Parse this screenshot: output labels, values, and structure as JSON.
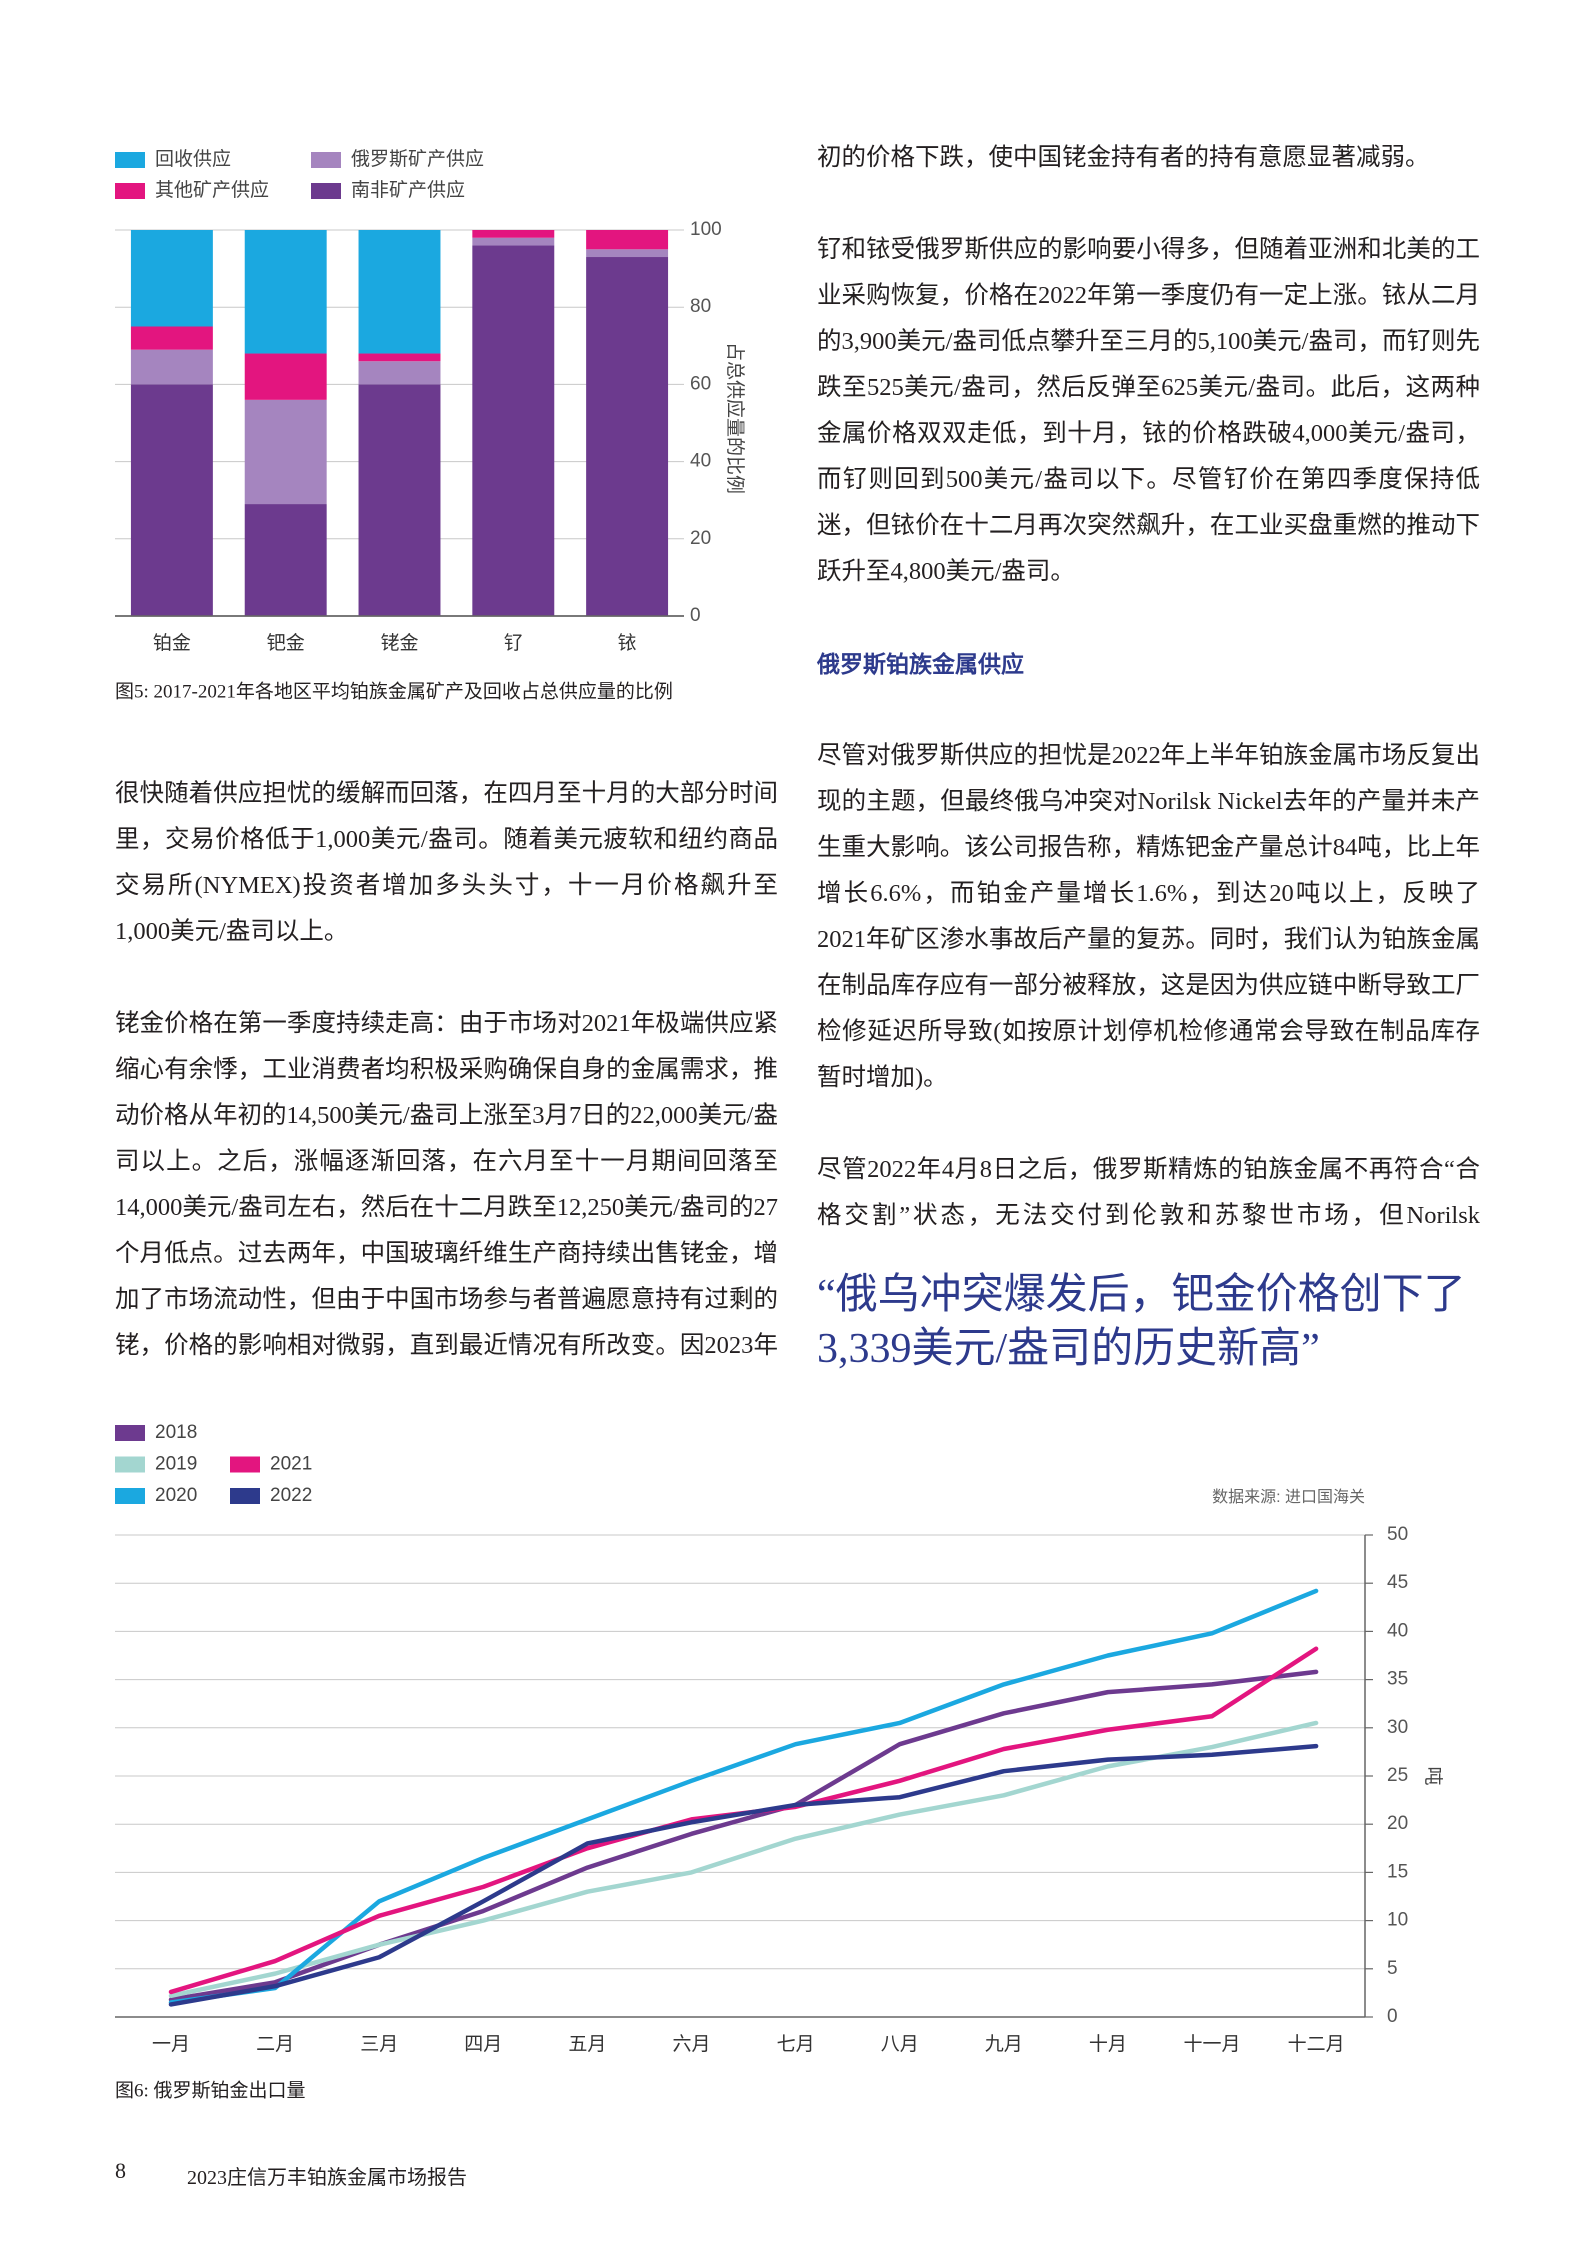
{
  "chart_data": [
    {
      "type": "stacked-bar",
      "categories": [
        "铂金",
        "钯金",
        "铑金",
        "钌",
        "铱"
      ],
      "series": [
        {
          "name": "南非矿产供应",
          "color": "#6c3a8e",
          "values": [
            60,
            29,
            60,
            96,
            93
          ]
        },
        {
          "name": "俄罗斯矿产供应",
          "color": "#a585bf",
          "values": [
            9,
            27,
            6,
            2,
            2
          ]
        },
        {
          "name": "其他矿产供应",
          "color": "#e3157f",
          "values": [
            6,
            12,
            2,
            2,
            5
          ]
        },
        {
          "name": "回收供应",
          "color": "#1ba8e0",
          "values": [
            25,
            32,
            32,
            0,
            0
          ]
        }
      ],
      "ylim": [
        0,
        100
      ],
      "yticks": [
        0,
        20,
        40,
        60,
        80,
        100
      ],
      "y_label": "占总供应量的比例",
      "grid": true,
      "caption": "图5: 2017-2021年各地区平均铂族金属矿产及回收占总供应量的比例"
    },
    {
      "type": "line",
      "categories": [
        "一月",
        "二月",
        "三月",
        "四月",
        "五月",
        "六月",
        "七月",
        "八月",
        "九月",
        "十月",
        "十一月",
        "十二月"
      ],
      "series": [
        {
          "name": "2018",
          "color": "#6d3a8f",
          "values": [
            1.8,
            3.6,
            7.5,
            11,
            15.5,
            19,
            22,
            28.3,
            31.5,
            33.7,
            34.5,
            35.8
          ]
        },
        {
          "name": "2019",
          "color": "#a3d6d0",
          "values": [
            2.2,
            4.5,
            7.5,
            10,
            13,
            15,
            18.5,
            21,
            23,
            26,
            28,
            30.5
          ]
        },
        {
          "name": "2020",
          "color": "#1ba8e0",
          "values": [
            1.5,
            3,
            12,
            16.5,
            20.5,
            24.5,
            28.3,
            30.5,
            34.5,
            37.5,
            39.8,
            44.2
          ]
        },
        {
          "name": "2021",
          "color": "#e3157f",
          "values": [
            2.6,
            5.8,
            10.5,
            13.5,
            17.5,
            20.5,
            21.8,
            24.5,
            27.8,
            29.8,
            31.2,
            38.2
          ]
        },
        {
          "name": "2022",
          "color": "#2d3a8c",
          "values": [
            1.3,
            3.2,
            6.2,
            12,
            18,
            20.2,
            22,
            22.8,
            25.5,
            26.7,
            27.2,
            28.1
          ]
        }
      ],
      "ylim": [
        0,
        50
      ],
      "yticks": [
        0,
        5,
        10,
        15,
        20,
        25,
        30,
        35,
        40,
        45,
        50
      ],
      "y_label": "吨",
      "grid": true,
      "source": "数据来源: 进口国海关",
      "caption": "图6: 俄罗斯铂金出口量"
    }
  ],
  "article": {
    "left": [
      "很快随着供应担忧的缓解而回落，在四月至十月的大部分时间里，交易价格低于1,000美元/盎司。随着美元疲软和纽约商品交易所(NYMEX)投资者增加多头头寸，十一月价格飙升至1,000美元/盎司以上。",
      "铑金价格在第一季度持续走高：由于市场对2021年极端供应紧缩心有余悸，工业消费者均积极采购确保自身的金属需求，推动价格从年初的14,500美元/盎司上涨至3月7日的22,000美元/盎司以上。之后，涨幅逐渐回落，在六月至十一月期间回落至14,000美元/盎司左右，然后在十二月跌至12,250美元/盎司的27个月低点。过去两年，中国玻璃纤维生产商持续出售铑金，增加了市场流动性，但由于中国市场参与者普遍愿意持有过剩的铑，价格的影响相对微弱，直到最近情况有所改变。因2023年"
    ],
    "right_top": [
      "初的价格下跌，使中国铑金持有者的持有意愿显著减弱。",
      "钌和铱受俄罗斯供应的影响要小得多，但随着亚洲和北美的工业采购恢复，价格在2022年第一季度仍有一定上涨。铱从二月的3,900美元/盎司低点攀升至三月的5,100美元/盎司，而钌则先跌至525美元/盎司，然后反弹至625美元/盎司。此后，这两种金属价格双双走低，到十月，铱的价格跌破4,000美元/盎司，而钌则回到500美元/盎司以下。尽管钌价在第四季度保持低迷，但铱价在十二月再次突然飙升，在工业买盘重燃的推动下跃升至4,800美元/盎司。"
    ],
    "section_heading": "俄罗斯铂族金属供应",
    "right_bottom": [
      "尽管对俄罗斯供应的担忧是2022年上半年铂族金属市场反复出现的主题，但最终俄乌冲突对Norilsk Nickel去年的产量并未产生重大影响。该公司报告称，精炼钯金产量总计84吨，比上年增长6.6%，而铂金产量增长1.6%，到达20吨以上，反映了2021年矿区渗水事故后产量的复苏。同时，我们认为铂族金属在制品库存应有一部分被释放，这是因为供应链中断导致工厂检修延迟所导致(如按原计划停机检修通常会导致在制品库存暂时增加)。",
      "尽管2022年4月8日之后，俄罗斯精炼的铂族金属不再符合“合格交割”状态，无法交付到伦敦和苏黎世市场，但Norilsk"
    ],
    "pull_quote": "“俄乌冲突爆发后，钯金价格创下了3,339美元/盎司的历史新高”"
  },
  "footer": {
    "page_number": 8,
    "report_title": "2023庄信万丰铂族金属市场报告"
  }
}
